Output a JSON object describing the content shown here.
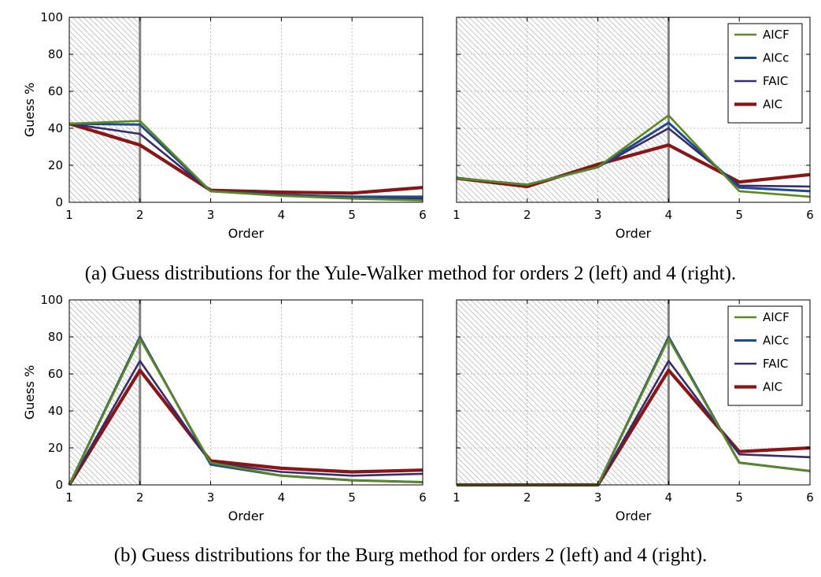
{
  "captions": {
    "a": "(a) Guess distributions for the Yule-Walker method for orders 2 (left) and 4 (right).",
    "b": "(b) Guess distributions for the Burg method for orders 2 (left) and 4 (right)."
  },
  "colors": {
    "AICF": "#5a8a1e",
    "AICc": "#1f4a8f",
    "FAIC": "#3a2a6e",
    "AIC": "#8b1414",
    "marker_line": "#808080",
    "grid": "#9a9a9a",
    "hatch": "#b8b8b8"
  },
  "chart_data": [
    {
      "type": "line",
      "panel": "a-left",
      "xlabel": "Order",
      "ylabel": "Guess %",
      "x": [
        1,
        2,
        3,
        4,
        5,
        6
      ],
      "xlim": [
        1,
        6
      ],
      "ylim": [
        0,
        100
      ],
      "yticks": [
        0,
        20,
        40,
        60,
        80,
        100
      ],
      "grid": true,
      "true_order": 2,
      "legend": null,
      "series": [
        {
          "name": "AICF",
          "values": [
            42.5,
            44,
            6,
            3.5,
            2,
            1
          ]
        },
        {
          "name": "AICc",
          "values": [
            42.5,
            42,
            6,
            4,
            3,
            3
          ]
        },
        {
          "name": "FAIC",
          "values": [
            42.5,
            37,
            6,
            4,
            3,
            2
          ]
        },
        {
          "name": "AIC",
          "values": [
            42.5,
            31,
            6.5,
            5.5,
            5,
            8
          ]
        }
      ]
    },
    {
      "type": "line",
      "panel": "a-right",
      "xlabel": "Order",
      "ylabel": "",
      "x": [
        1,
        2,
        3,
        4,
        5,
        6
      ],
      "xlim": [
        1,
        6
      ],
      "ylim": [
        0,
        100
      ],
      "yticks": [
        0,
        20,
        40,
        60,
        80,
        100
      ],
      "grid": true,
      "true_order": 4,
      "legend": "top-right",
      "series": [
        {
          "name": "AICF",
          "values": [
            13,
            9.5,
            19,
            47,
            6,
            3
          ]
        },
        {
          "name": "AICc",
          "values": [
            13,
            9.5,
            19,
            43,
            8,
            6
          ]
        },
        {
          "name": "FAIC",
          "values": [
            13,
            9.5,
            19,
            40,
            9,
            8.5
          ]
        },
        {
          "name": "AIC",
          "values": [
            13,
            8.5,
            20.5,
            31,
            11,
            15
          ]
        }
      ]
    },
    {
      "type": "line",
      "panel": "b-left",
      "xlabel": "Order",
      "ylabel": "Guess %",
      "x": [
        1,
        2,
        3,
        4,
        5,
        6
      ],
      "xlim": [
        1,
        6
      ],
      "ylim": [
        0,
        100
      ],
      "yticks": [
        0,
        20,
        40,
        60,
        80,
        100
      ],
      "grid": true,
      "true_order": 2,
      "legend": null,
      "series": [
        {
          "name": "AICF",
          "values": [
            0,
            79,
            12,
            5,
            2.5,
            1.5
          ]
        },
        {
          "name": "AICc",
          "values": [
            0,
            80,
            11,
            5,
            2.5,
            1.5
          ]
        },
        {
          "name": "FAIC",
          "values": [
            0,
            67,
            12,
            7,
            5,
            6
          ]
        },
        {
          "name": "AIC",
          "values": [
            0,
            62,
            13,
            9,
            7,
            8
          ]
        }
      ]
    },
    {
      "type": "line",
      "panel": "b-right",
      "xlabel": "Order",
      "ylabel": "",
      "x": [
        1,
        2,
        3,
        4,
        5,
        6
      ],
      "xlim": [
        1,
        6
      ],
      "ylim": [
        0,
        100
      ],
      "yticks": [
        0,
        20,
        40,
        60,
        80,
        100
      ],
      "grid": true,
      "true_order": 4,
      "legend": "top-right",
      "series": [
        {
          "name": "AICF",
          "values": [
            0,
            0,
            0,
            79,
            12,
            7.5
          ]
        },
        {
          "name": "AICc",
          "values": [
            0,
            0,
            0,
            80,
            12,
            7.5
          ]
        },
        {
          "name": "FAIC",
          "values": [
            0,
            0,
            0,
            67,
            16.5,
            15
          ]
        },
        {
          "name": "AIC",
          "values": [
            0,
            0,
            0,
            62,
            18,
            20
          ]
        }
      ]
    }
  ]
}
